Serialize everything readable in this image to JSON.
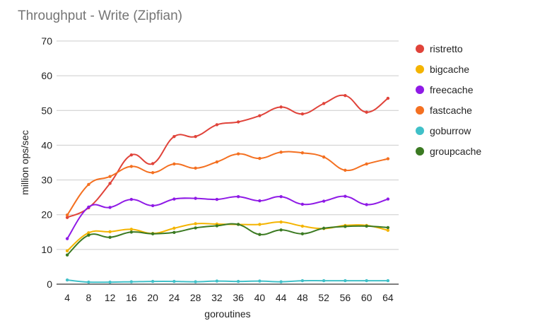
{
  "chart_data": {
    "type": "line",
    "title": "Throughput - Write (Zipfian)",
    "xlabel": "goroutines",
    "ylabel": "million ops/sec",
    "x": [
      4,
      8,
      12,
      16,
      20,
      24,
      28,
      32,
      36,
      40,
      44,
      48,
      52,
      56,
      60,
      64
    ],
    "ylim": [
      0,
      70
    ],
    "yticks": [
      0,
      10,
      20,
      30,
      40,
      50,
      60,
      70
    ],
    "grid": true,
    "legend_position": "right",
    "series": [
      {
        "name": "ristretto",
        "color": "#e0433a",
        "values": [
          19.2,
          22.0,
          29.0,
          37.2,
          34.7,
          42.5,
          42.5,
          45.9,
          46.7,
          48.5,
          51.0,
          49.0,
          52.0,
          54.3,
          49.5,
          53.5
        ]
      },
      {
        "name": "bigcache",
        "color": "#f4b400",
        "values": [
          9.6,
          14.8,
          15.1,
          15.8,
          14.6,
          16.1,
          17.4,
          17.3,
          17.2,
          17.2,
          17.9,
          16.7,
          16.0,
          16.9,
          16.9,
          15.5
        ]
      },
      {
        "name": "freecache",
        "color": "#8f1ae6",
        "values": [
          13.1,
          22.2,
          22.1,
          24.4,
          22.6,
          24.5,
          24.7,
          24.4,
          25.2,
          24.0,
          25.2,
          23.0,
          23.9,
          25.3,
          22.9,
          24.5
        ]
      },
      {
        "name": "fastcache",
        "color": "#f47021",
        "values": [
          19.9,
          28.7,
          31.0,
          33.9,
          32.1,
          34.6,
          33.4,
          35.2,
          37.5,
          36.2,
          38.0,
          37.8,
          36.6,
          32.8,
          34.6,
          36.1
        ]
      },
      {
        "name": "goburrow",
        "color": "#40c0c8",
        "values": [
          1.2,
          0.6,
          0.6,
          0.7,
          0.8,
          0.8,
          0.7,
          0.9,
          0.8,
          0.9,
          0.7,
          1.0,
          1.0,
          1.0,
          1.0,
          1.0
        ]
      },
      {
        "name": "groupcache",
        "color": "#3b7a22",
        "values": [
          8.4,
          14.1,
          13.5,
          15.0,
          14.5,
          14.9,
          16.2,
          16.8,
          17.2,
          14.3,
          15.6,
          14.5,
          16.1,
          16.6,
          16.7,
          16.3
        ]
      }
    ]
  }
}
